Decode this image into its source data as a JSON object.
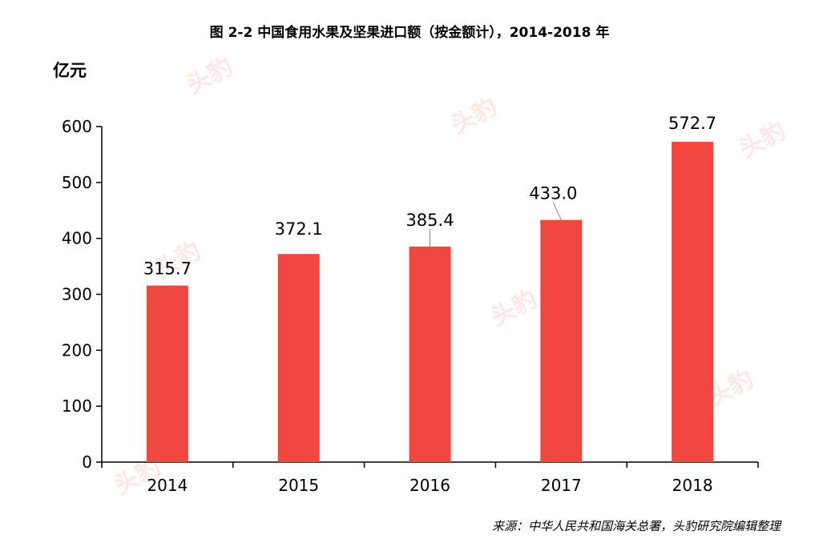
{
  "title": "图  2-2 中国食用水果及坚果进口额（按金额计），2014-2018 年",
  "unit_label": "亿元",
  "source": "来源：中华人民共和国海关总署，头豹研究院编辑整理",
  "watermark": "头豹",
  "colors": {
    "bar": "#f0483e",
    "axis": "#000000",
    "leader": "#888888"
  },
  "chart_data": {
    "type": "bar",
    "title": "图  2-2 中国食用水果及坚果进口额（按金额计），2014-2018 年",
    "ylabel": "亿元",
    "xlabel": "",
    "categories": [
      "2014",
      "2015",
      "2016",
      "2017",
      "2018"
    ],
    "values": [
      315.7,
      372.1,
      385.4,
      433.0,
      572.7
    ],
    "value_labels": [
      "315.7",
      "372.1",
      "385.4",
      "433.0",
      "572.7"
    ],
    "ylim": [
      0,
      600
    ],
    "yticks": [
      "0",
      "100",
      "200",
      "300",
      "400",
      "500",
      "600"
    ],
    "grid": false,
    "legend": "none"
  }
}
